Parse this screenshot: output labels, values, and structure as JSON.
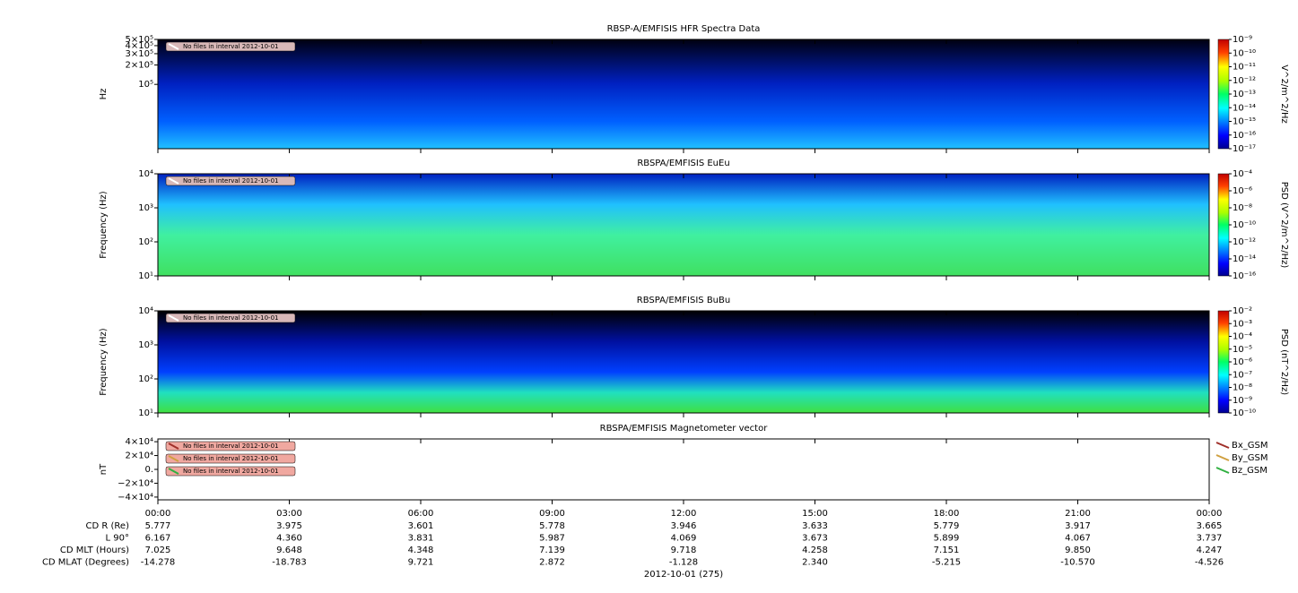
{
  "chart_data": [
    {
      "type": "spectrogram",
      "title": "RBSP-A/EMFISIS  HFR Spectra Data",
      "ylabel": "Hz",
      "log_scale": true,
      "ylim": [
        10000,
        500000
      ],
      "yticks": [
        {
          "value": 500000,
          "label": "5×10⁵"
        },
        {
          "value": 400000,
          "label": "4×10⁵"
        },
        {
          "value": 300000,
          "label": "3×10⁵"
        },
        {
          "value": 200000,
          "label": "2×10⁵"
        },
        {
          "value": 100000,
          "label": "10⁵"
        }
      ],
      "zlabel": "V^2/m^2/Hz",
      "zlim": [
        1e-17,
        1e-09
      ],
      "zticks": [
        {
          "value": 1e-09,
          "label": "10⁻⁹"
        },
        {
          "value": 1e-10,
          "label": "10⁻¹⁰"
        },
        {
          "value": 1e-11,
          "label": "10⁻¹¹"
        },
        {
          "value": 1e-12,
          "label": "10⁻¹²"
        },
        {
          "value": 1e-13,
          "label": "10⁻¹³"
        },
        {
          "value": 1e-14,
          "label": "10⁻¹⁴"
        },
        {
          "value": 1e-15,
          "label": "10⁻¹⁵"
        },
        {
          "value": 1e-16,
          "label": "10⁻¹⁶"
        },
        {
          "value": 1e-17,
          "label": "10⁻¹⁷"
        }
      ],
      "notices": [
        "No files in interval 2012-10-01"
      ]
    },
    {
      "type": "spectrogram",
      "title": "RBSPA/EMFISIS  EuEu",
      "ylabel": "Frequency (Hz)",
      "log_scale": true,
      "ylim": [
        10,
        10000
      ],
      "yticks": [
        {
          "value": 10000,
          "label": "10⁴"
        },
        {
          "value": 1000,
          "label": "10³"
        },
        {
          "value": 100,
          "label": "10²"
        },
        {
          "value": 10,
          "label": "10¹"
        }
      ],
      "zlabel": "PSD (V^2/m^2/Hz)",
      "zlim": [
        1e-16,
        0.0001
      ],
      "zticks": [
        {
          "value": 0.0001,
          "label": "10⁻⁴"
        },
        {
          "value": 1e-06,
          "label": "10⁻⁶"
        },
        {
          "value": 1e-08,
          "label": "10⁻⁸"
        },
        {
          "value": 1e-10,
          "label": "10⁻¹⁰"
        },
        {
          "value": 1e-12,
          "label": "10⁻¹²"
        },
        {
          "value": 1e-14,
          "label": "10⁻¹⁴"
        },
        {
          "value": 1e-16,
          "label": "10⁻¹⁶"
        }
      ],
      "notices": [
        "No files in interval 2012-10-01"
      ]
    },
    {
      "type": "spectrogram",
      "title": "RBSPA/EMFISIS  BuBu",
      "ylabel": "Frequency (Hz)",
      "log_scale": true,
      "ylim": [
        10,
        10000
      ],
      "yticks": [
        {
          "value": 10000,
          "label": "10⁴"
        },
        {
          "value": 1000,
          "label": "10³"
        },
        {
          "value": 100,
          "label": "10²"
        },
        {
          "value": 10,
          "label": "10¹"
        }
      ],
      "zlabel": "PSD (nT^2/Hz)",
      "zlim": [
        1e-10,
        0.01
      ],
      "zticks": [
        {
          "value": 0.01,
          "label": "10⁻²"
        },
        {
          "value": 0.001,
          "label": "10⁻³"
        },
        {
          "value": 0.0001,
          "label": "10⁻⁴"
        },
        {
          "value": 1e-05,
          "label": "10⁻⁵"
        },
        {
          "value": 1e-06,
          "label": "10⁻⁶"
        },
        {
          "value": 1e-07,
          "label": "10⁻⁷"
        },
        {
          "value": 1e-08,
          "label": "10⁻⁸"
        },
        {
          "value": 1e-09,
          "label": "10⁻⁹"
        },
        {
          "value": 1e-10,
          "label": "10⁻¹⁰"
        }
      ],
      "notices": [
        "No files in interval 2012-10-01"
      ]
    },
    {
      "type": "line",
      "title": "RBSPA/EMFISIS  Magnetometer vector",
      "ylabel": "nT",
      "log_scale": false,
      "ylim": [
        -44000,
        44000
      ],
      "yticks": [
        {
          "value": 40000,
          "label": "4×10⁴"
        },
        {
          "value": 20000,
          "label": "2×10⁴"
        },
        {
          "value": 0,
          "label": "0."
        },
        {
          "value": -20000,
          "label": "−2×10⁴"
        },
        {
          "value": -40000,
          "label": "−4×10⁴"
        }
      ],
      "series": [
        {
          "name": "Bx_GSM",
          "color": "#a0302a"
        },
        {
          "name": "By_GSM",
          "color": "#d0a040"
        },
        {
          "name": "Bz_GSM",
          "color": "#30b040"
        }
      ],
      "notices": [
        "No files in interval 2012-10-01",
        "No files in interval 2012-10-01",
        "No files in interval 2012-10-01"
      ]
    }
  ],
  "time_axis": {
    "xlim": [
      0,
      24
    ],
    "xticks": [
      {
        "value": 0,
        "label": "00:00"
      },
      {
        "value": 3,
        "label": "03:00"
      },
      {
        "value": 6,
        "label": "06:00"
      },
      {
        "value": 9,
        "label": "09:00"
      },
      {
        "value": 12,
        "label": "12:00"
      },
      {
        "value": 15,
        "label": "15:00"
      },
      {
        "value": 18,
        "label": "18:00"
      },
      {
        "value": 21,
        "label": "21:00"
      },
      {
        "value": 24,
        "label": "00:00"
      }
    ],
    "xlabel": "2012-10-01 (275)"
  },
  "ephemeris": {
    "rows": [
      {
        "label": "CD R (Re)",
        "values": [
          "5.777",
          "3.975",
          "3.601",
          "5.778",
          "3.946",
          "3.633",
          "5.779",
          "3.917",
          "3.665"
        ]
      },
      {
        "label": "L 90°",
        "values": [
          "6.167",
          "4.360",
          "3.831",
          "5.987",
          "4.069",
          "3.673",
          "5.899",
          "4.067",
          "3.737"
        ]
      },
      {
        "label": "CD MLT (Hours)",
        "values": [
          "7.025",
          "9.648",
          "4.348",
          "7.139",
          "9.718",
          "4.258",
          "7.151",
          "9.850",
          "4.247"
        ]
      },
      {
        "label": "CD MLAT (Degrees)",
        "values": [
          "-14.278",
          "-18.783",
          "9.721",
          "2.872",
          "-1.128",
          "2.340",
          "-5.215",
          "-10.570",
          "-4.526"
        ]
      }
    ]
  }
}
